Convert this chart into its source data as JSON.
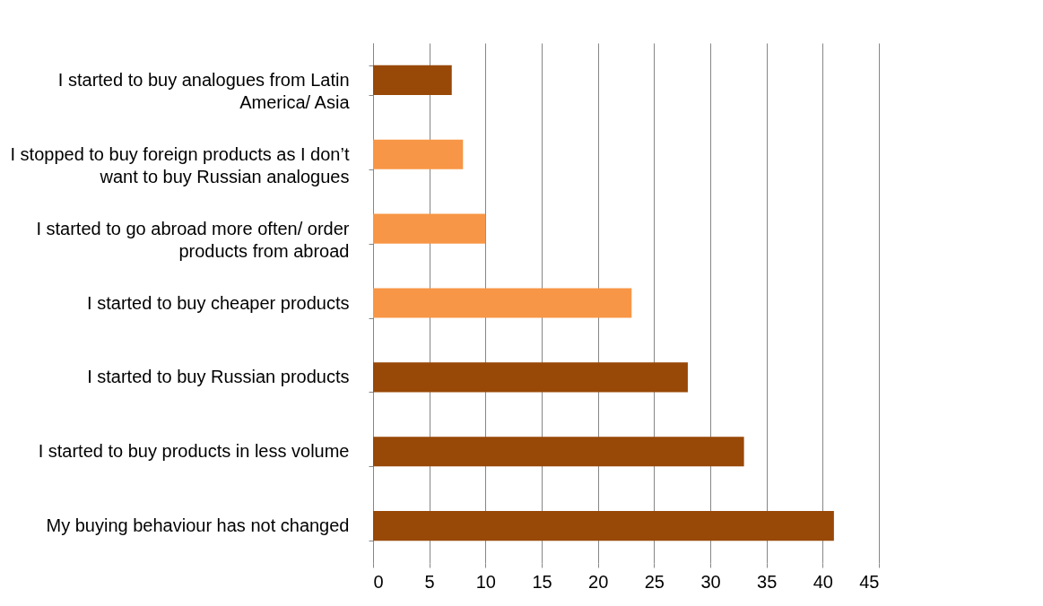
{
  "chart_data": {
    "type": "bar",
    "orientation": "horizontal",
    "categories": [
      "I started to buy analogues from Latin America/ Asia",
      "I stopped to buy foreign products as I don’t want to buy Russian analogues",
      "I started to go abroad more often/ order products from abroad",
      "I started to buy cheaper products",
      "I started to buy Russian products",
      "I started to buy products in less volume",
      "My buying behaviour has not changed"
    ],
    "values": [
      7,
      8,
      10,
      23,
      28,
      33,
      41
    ],
    "colors": [
      "#984807",
      "#f79646",
      "#f79646",
      "#f79646",
      "#984807",
      "#984807",
      "#984807"
    ],
    "xlim": [
      0,
      45
    ],
    "xticks": [
      0,
      5,
      10,
      15,
      20,
      25,
      30,
      35,
      40,
      45
    ],
    "grid": "x"
  }
}
